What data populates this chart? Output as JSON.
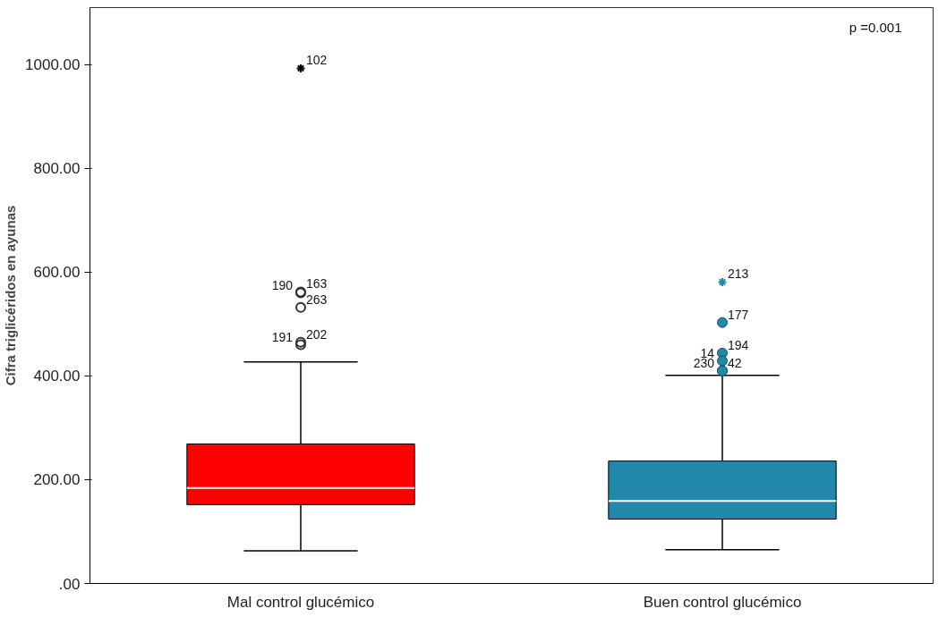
{
  "chart_data": {
    "type": "box",
    "ylabel": "Cifra triglicéridos en ayunas",
    "categories": [
      "Mal control glucémico",
      "Buen control glucémico"
    ],
    "colors": [
      "#ff0000",
      "#2389ab"
    ],
    "boxes": [
      {
        "low": 63,
        "q1": 152,
        "median": 184,
        "q3": 269,
        "high": 427,
        "outliers": [
          993,
          562,
          560,
          532,
          465,
          460
        ]
      },
      {
        "low": 65,
        "q1": 124,
        "median": 159,
        "q3": 236,
        "high": 401,
        "outliers": [
          581,
          503,
          444,
          429,
          410,
          410
        ]
      }
    ],
    "ylim": [
      0,
      1110
    ],
    "yticks": [
      {
        "value": 0,
        "label": ".00"
      },
      {
        "value": 200,
        "label": "200.00"
      },
      {
        "value": 400,
        "label": "400.00"
      },
      {
        "value": 600,
        "label": "600.00"
      },
      {
        "value": 800,
        "label": "800.00"
      },
      {
        "value": 1000,
        "label": "1000.00"
      }
    ],
    "grid": false,
    "annotations": [
      "p =0.001",
      "102",
      "163",
      "190",
      "263",
      "202",
      "191",
      "213",
      "177",
      "194",
      "14",
      "42",
      "230"
    ]
  }
}
